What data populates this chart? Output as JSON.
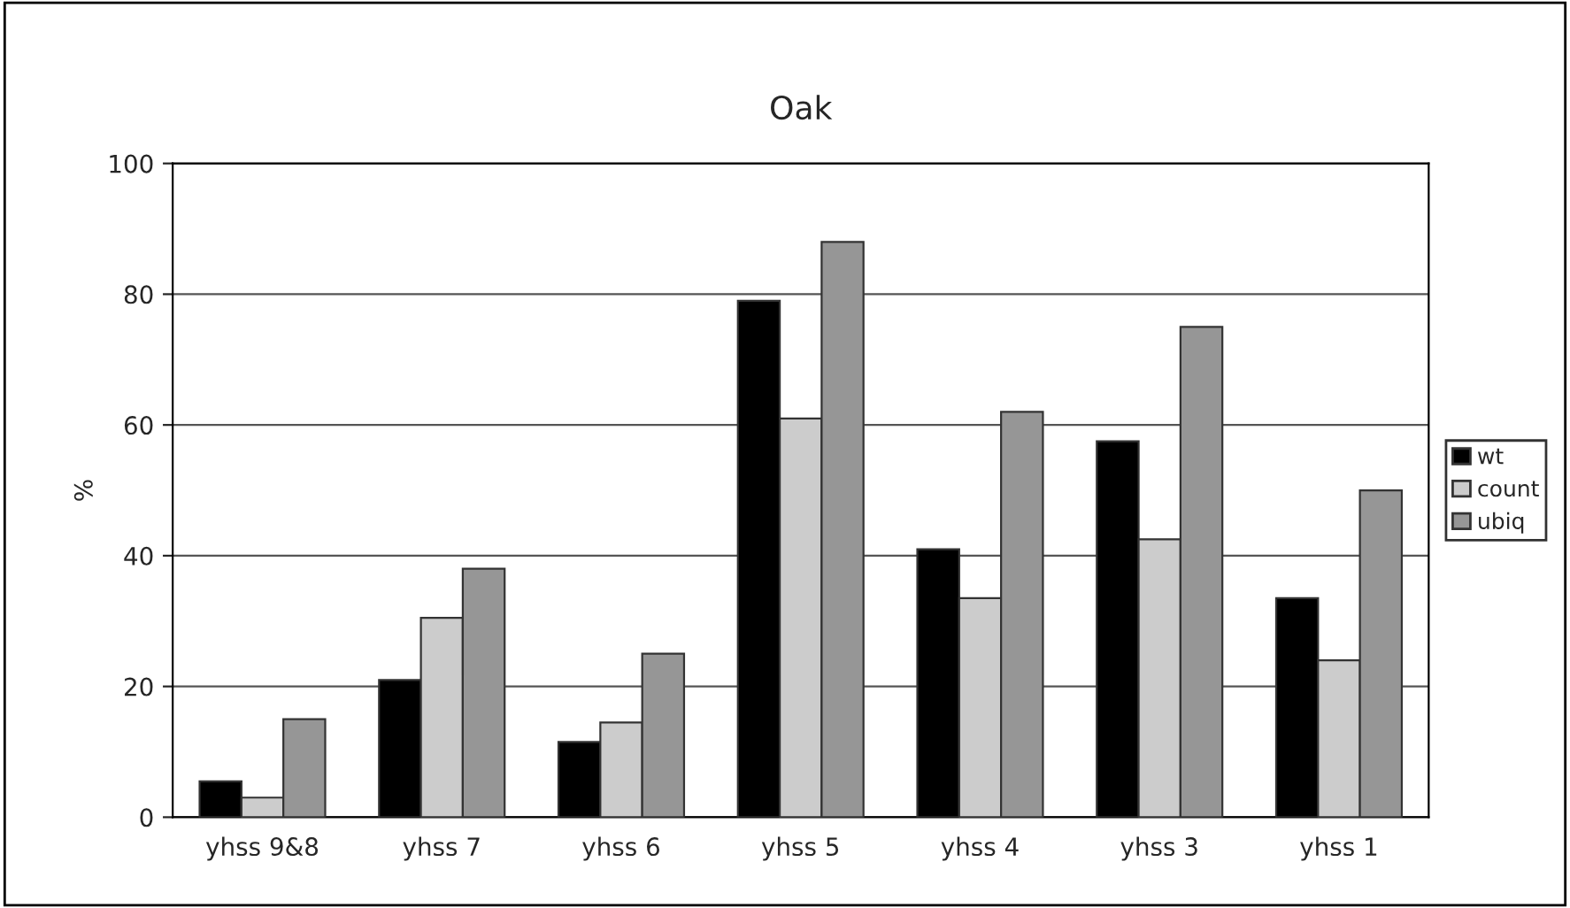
{
  "chart_data": {
    "type": "bar",
    "title": "Oak",
    "ylabel": "%",
    "categories": [
      "yhss 9&8",
      "yhss 7",
      "yhss 6",
      "yhss 5",
      "yhss 4",
      "yhss 3",
      "yhss 1"
    ],
    "series": [
      {
        "name": "wt",
        "color": "#000000",
        "values": [
          5.5,
          21,
          11.5,
          79,
          41,
          57.5,
          33.5
        ]
      },
      {
        "name": "count",
        "color": "#cccccc",
        "values": [
          3,
          30.5,
          14.5,
          61,
          33.5,
          42.5,
          24
        ]
      },
      {
        "name": "ubiq",
        "color": "#969696",
        "values": [
          15,
          38,
          25,
          88,
          62,
          75,
          50
        ]
      }
    ],
    "ylim": [
      0,
      100
    ],
    "yticks": [
      0,
      20,
      40,
      60,
      80,
      100
    ],
    "grid": "y",
    "legend": "right"
  }
}
